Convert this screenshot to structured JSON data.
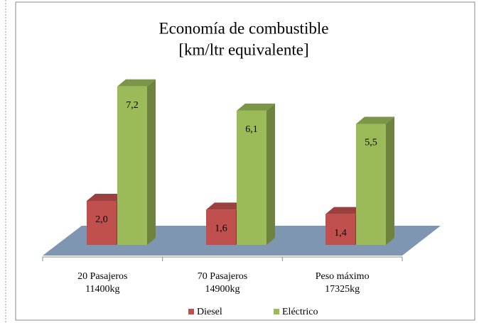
{
  "chart_data": {
    "type": "bar3d",
    "title": [
      "Economía de combustible",
      "[km/ltr equivalente]"
    ],
    "categories": [
      [
        "20 Pasajeros",
        "11400kg"
      ],
      [
        "70 Pasajeros",
        "14900kg"
      ],
      [
        "Peso máximo",
        "17325kg"
      ]
    ],
    "series": [
      {
        "name": "Diesel",
        "color": "#c0504d",
        "values": [
          2.0,
          1.6,
          1.4
        ],
        "value_labels": [
          "2,0",
          "1,6",
          "1,4"
        ]
      },
      {
        "name": "Eléctrico",
        "color": "#9bbb59",
        "values": [
          7.2,
          6.1,
          5.5
        ],
        "value_labels": [
          "7,2",
          "6,1",
          "5,5"
        ]
      }
    ],
    "floor_color": "#7f96b2"
  }
}
